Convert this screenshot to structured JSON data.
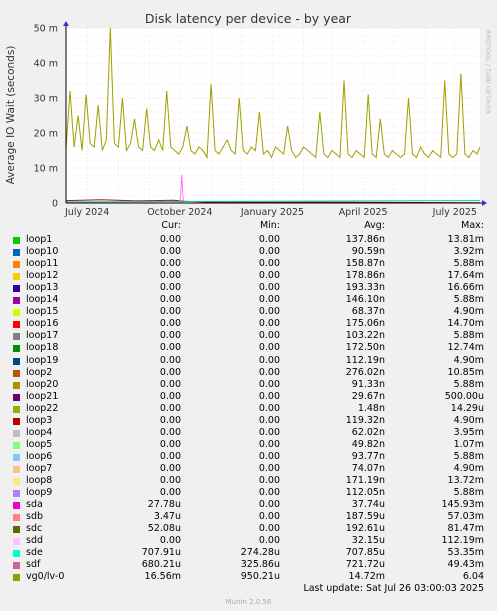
{
  "chart_data": {
    "type": "line",
    "title": "Disk latency per device - by year",
    "ylabel": "Average IO Wait (seconds)",
    "side_label": "RRDTOOL / TOBI OETIKER",
    "y_ticks": [
      "0",
      "10 m",
      "20 m",
      "30 m",
      "40 m",
      "50 m"
    ],
    "ylim": [
      0,
      0.05
    ],
    "x_ticks": [
      "July 2024",
      "October 2024",
      "January 2025",
      "April 2025",
      "July 2025"
    ],
    "xlim": [
      "2024-06-10",
      "2025-07-26"
    ],
    "grid": true,
    "series": [
      {
        "name": "vg0/lv-0",
        "color": "#a0a000",
        "x": [
          "2024-06-10",
          "2024-06-14",
          "2024-06-18",
          "2024-06-22",
          "2024-06-26",
          "2024-06-30",
          "2024-07-04",
          "2024-07-08",
          "2024-07-12",
          "2024-07-16",
          "2024-07-20",
          "2024-07-24",
          "2024-07-28",
          "2024-08-01",
          "2024-08-05",
          "2024-08-09",
          "2024-08-13",
          "2024-08-17",
          "2024-08-21",
          "2024-08-25",
          "2024-08-29",
          "2024-09-02",
          "2024-09-06",
          "2024-09-10",
          "2024-09-14",
          "2024-09-18",
          "2024-09-22",
          "2024-09-26",
          "2024-09-30",
          "2024-10-04",
          "2024-10-08",
          "2024-10-12",
          "2024-10-16",
          "2024-10-20",
          "2024-10-24",
          "2024-10-28",
          "2024-11-01",
          "2024-11-05",
          "2024-11-09",
          "2024-11-13",
          "2024-11-17",
          "2024-11-21",
          "2024-11-25",
          "2024-11-29",
          "2024-12-03",
          "2024-12-07",
          "2024-12-11",
          "2024-12-15",
          "2024-12-19",
          "2024-12-23",
          "2024-12-27",
          "2024-12-31",
          "2025-01-04",
          "2025-01-08",
          "2025-01-12",
          "2025-01-16",
          "2025-01-20",
          "2025-01-24",
          "2025-01-28",
          "2025-02-01",
          "2025-02-05",
          "2025-02-09",
          "2025-02-13",
          "2025-02-17",
          "2025-02-21",
          "2025-02-25",
          "2025-03-01",
          "2025-03-05",
          "2025-03-09",
          "2025-03-13",
          "2025-03-17",
          "2025-03-21",
          "2025-03-25",
          "2025-03-29",
          "2025-04-02",
          "2025-04-06",
          "2025-04-10",
          "2025-04-14",
          "2025-04-18",
          "2025-04-22",
          "2025-04-26",
          "2025-04-30",
          "2025-05-04",
          "2025-05-08",
          "2025-05-12",
          "2025-05-16",
          "2025-05-20",
          "2025-05-24",
          "2025-05-28",
          "2025-06-01",
          "2025-06-05",
          "2025-06-09",
          "2025-06-13",
          "2025-06-17",
          "2025-06-21",
          "2025-06-25",
          "2025-06-29",
          "2025-07-03",
          "2025-07-07",
          "2025-07-11",
          "2025-07-15",
          "2025-07-19",
          "2025-07-23",
          "2025-07-26"
        ],
        "y": [
          0.0155,
          0.032,
          0.016,
          0.025,
          0.015,
          0.031,
          0.017,
          0.016,
          0.028,
          0.015,
          0.018,
          0.05,
          0.017,
          0.016,
          0.03,
          0.015,
          0.017,
          0.024,
          0.016,
          0.015,
          0.027,
          0.016,
          0.015,
          0.018,
          0.015,
          0.032,
          0.016,
          0.015,
          0.014,
          0.016,
          0.022,
          0.015,
          0.014,
          0.016,
          0.015,
          0.013,
          0.034,
          0.015,
          0.014,
          0.016,
          0.018,
          0.015,
          0.014,
          0.03,
          0.015,
          0.014,
          0.016,
          0.015,
          0.026,
          0.014,
          0.015,
          0.013,
          0.016,
          0.015,
          0.014,
          0.022,
          0.015,
          0.013,
          0.014,
          0.016,
          0.015,
          0.014,
          0.013,
          0.026,
          0.014,
          0.013,
          0.015,
          0.014,
          0.013,
          0.035,
          0.014,
          0.013,
          0.015,
          0.014,
          0.013,
          0.031,
          0.014,
          0.013,
          0.024,
          0.014,
          0.013,
          0.015,
          0.014,
          0.013,
          0.014,
          0.03,
          0.014,
          0.013,
          0.016,
          0.014,
          0.013,
          0.015,
          0.014,
          0.013,
          0.035,
          0.014,
          0.013,
          0.014,
          0.037,
          0.014,
          0.013,
          0.015,
          0.014,
          0.016
        ]
      },
      {
        "name": "sdc",
        "color": "#cc0000",
        "x": [
          "2024-06-10",
          "2024-07-15",
          "2024-08-20",
          "2024-09-25",
          "2024-10-06",
          "2024-11-01",
          "2025-03-01",
          "2025-07-26"
        ],
        "y": [
          0.0007,
          0.0009,
          0.0006,
          0.0008,
          0.0005,
          0.0002,
          0.0002,
          0.0001
        ]
      },
      {
        "name": "sdd",
        "color": "#ff77ff",
        "x": [
          "2024-10-01",
          "2024-10-02",
          "2024-10-03",
          "2024-10-04",
          "2024-10-05"
        ],
        "y": [
          0,
          0.003,
          0.0081,
          0.002,
          0
        ]
      },
      {
        "name": "sde",
        "color": "#00ccaa",
        "x": [
          "2024-06-10",
          "2025-07-26"
        ],
        "y": [
          0.0003,
          0.0007
        ]
      }
    ]
  },
  "legend": {
    "headers": {
      "cur": "Cur:",
      "min": "Min:",
      "avg": "Avg:",
      "max": "Max:"
    },
    "rows": [
      {
        "name": "loop1",
        "color": "#00cc00",
        "cur": "0.00",
        "min": "0.00",
        "avg": "137.86n",
        "max": "13.81m"
      },
      {
        "name": "loop10",
        "color": "#0066b3",
        "cur": "0.00",
        "min": "0.00",
        "avg": "90.59n",
        "max": "3.92m"
      },
      {
        "name": "loop11",
        "color": "#ff8000",
        "cur": "0.00",
        "min": "0.00",
        "avg": "158.87n",
        "max": "5.88m"
      },
      {
        "name": "loop12",
        "color": "#ffcc00",
        "cur": "0.00",
        "min": "0.00",
        "avg": "178.86n",
        "max": "17.64m"
      },
      {
        "name": "loop13",
        "color": "#330099",
        "cur": "0.00",
        "min": "0.00",
        "avg": "193.33n",
        "max": "16.66m"
      },
      {
        "name": "loop14",
        "color": "#990099",
        "cur": "0.00",
        "min": "0.00",
        "avg": "146.10n",
        "max": "5.88m"
      },
      {
        "name": "loop15",
        "color": "#ccff00",
        "cur": "0.00",
        "min": "0.00",
        "avg": "68.37n",
        "max": "4.90m"
      },
      {
        "name": "loop16",
        "color": "#ff0000",
        "cur": "0.00",
        "min": "0.00",
        "avg": "175.06n",
        "max": "14.70m"
      },
      {
        "name": "loop17",
        "color": "#808080",
        "cur": "0.00",
        "min": "0.00",
        "avg": "103.22n",
        "max": "5.88m"
      },
      {
        "name": "loop18",
        "color": "#008f00",
        "cur": "0.00",
        "min": "0.00",
        "avg": "172.50n",
        "max": "12.74m"
      },
      {
        "name": "loop19",
        "color": "#00487d",
        "cur": "0.00",
        "min": "0.00",
        "avg": "112.19n",
        "max": "4.90m"
      },
      {
        "name": "loop2",
        "color": "#b35a00",
        "cur": "0.00",
        "min": "0.00",
        "avg": "276.02n",
        "max": "10.85m"
      },
      {
        "name": "loop20",
        "color": "#b38f00",
        "cur": "0.00",
        "min": "0.00",
        "avg": "91.33n",
        "max": "5.88m"
      },
      {
        "name": "loop21",
        "color": "#6b006b",
        "cur": "0.00",
        "min": "0.00",
        "avg": "29.67n",
        "max": "500.00u"
      },
      {
        "name": "loop22",
        "color": "#8fb300",
        "cur": "0.00",
        "min": "0.00",
        "avg": "1.48n",
        "max": "14.29u"
      },
      {
        "name": "loop3",
        "color": "#b30000",
        "cur": "0.00",
        "min": "0.00",
        "avg": "119.32n",
        "max": "4.90m"
      },
      {
        "name": "loop4",
        "color": "#bebebe",
        "cur": "0.00",
        "min": "0.00",
        "avg": "62.02n",
        "max": "3.95m"
      },
      {
        "name": "loop5",
        "color": "#80ff80",
        "cur": "0.00",
        "min": "0.00",
        "avg": "49.82n",
        "max": "1.07m"
      },
      {
        "name": "loop6",
        "color": "#80c9ff",
        "cur": "0.00",
        "min": "0.00",
        "avg": "93.77n",
        "max": "5.88m"
      },
      {
        "name": "loop7",
        "color": "#ffc080",
        "cur": "0.00",
        "min": "0.00",
        "avg": "74.07n",
        "max": "4.90m"
      },
      {
        "name": "loop8",
        "color": "#ffe680",
        "cur": "0.00",
        "min": "0.00",
        "avg": "171.19n",
        "max": "13.72m"
      },
      {
        "name": "loop9",
        "color": "#aa80ff",
        "cur": "0.00",
        "min": "0.00",
        "avg": "112.05n",
        "max": "5.88m"
      },
      {
        "name": "sda",
        "color": "#ee00cc",
        "cur": "27.78u",
        "min": "0.00",
        "avg": "37.74u",
        "max": "145.93m"
      },
      {
        "name": "sdb",
        "color": "#ff8080",
        "cur": "3.47u",
        "min": "0.00",
        "avg": "187.59u",
        "max": "57.03m"
      },
      {
        "name": "sdc",
        "color": "#666600",
        "cur": "52.08u",
        "min": "0.00",
        "avg": "192.61u",
        "max": "81.47m"
      },
      {
        "name": "sdd",
        "color": "#ffbfff",
        "cur": "0.00",
        "min": "0.00",
        "avg": "32.15u",
        "max": "112.19m"
      },
      {
        "name": "sde",
        "color": "#00ffcc",
        "cur": "707.91u",
        "min": "274.28u",
        "avg": "707.85u",
        "max": "53.35m"
      },
      {
        "name": "sdf",
        "color": "#cc6699",
        "cur": "680.21u",
        "min": "325.86u",
        "avg": "721.72u",
        "max": "49.43m"
      },
      {
        "name": "vg0/lv-0",
        "color": "#999900",
        "cur": "16.56m",
        "min": "950.21u",
        "avg": "14.72m",
        "max": "6.04"
      }
    ]
  },
  "footer": {
    "last_update": "Last update: Sat Jul 26 03:00:03 2025",
    "version": "Munin 2.0.56"
  }
}
